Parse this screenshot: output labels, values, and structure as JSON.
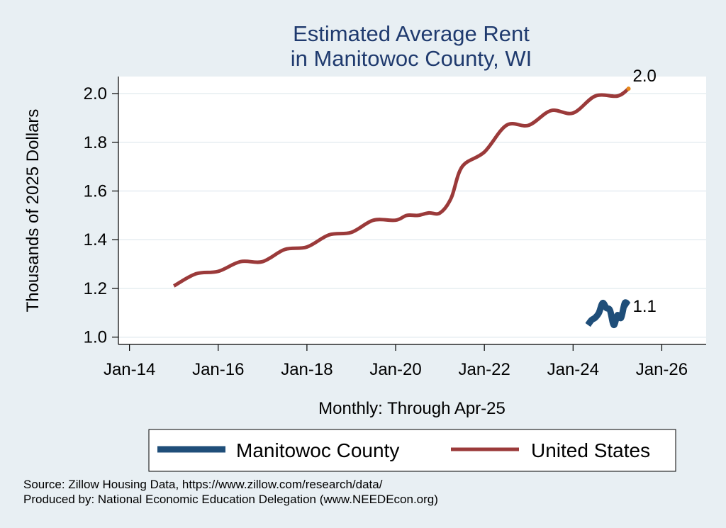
{
  "chart_data": {
    "type": "line",
    "title": [
      "Estimated Average Rent",
      "in Manitowoc County, WI"
    ],
    "ylabel": "Thousands of 2025 Dollars",
    "xlabel": "Monthly: Through Apr-25",
    "ylim": [
      0.97,
      2.07
    ],
    "yticks": [
      1.0,
      1.2,
      1.4,
      1.6,
      1.8,
      2.0
    ],
    "ytick_labels": [
      "1.0",
      "1.2",
      "1.4",
      "1.6",
      "1.8",
      "2.0"
    ],
    "xlim": [
      "2013-10",
      "2027-01"
    ],
    "xticks": [
      "2014-01",
      "2016-01",
      "2018-01",
      "2020-01",
      "2022-01",
      "2024-01",
      "2026-01"
    ],
    "xtick_labels": [
      "Jan-14",
      "Jan-16",
      "Jan-18",
      "Jan-20",
      "Jan-22",
      "Jan-24",
      "Jan-26"
    ],
    "grid": true,
    "legend": "bottom",
    "series": [
      {
        "name": "Manitowoc County",
        "color": "#1f4e79",
        "end_label": "1.1",
        "points": [
          [
            "2024-05",
            1.05
          ],
          [
            "2024-06",
            1.07
          ],
          [
            "2024-07",
            1.08
          ],
          [
            "2024-08",
            1.1
          ],
          [
            "2024-09",
            1.14
          ],
          [
            "2024-10",
            1.12
          ],
          [
            "2024-11",
            1.11
          ],
          [
            "2024-12",
            1.05
          ],
          [
            "2025-01",
            1.09
          ],
          [
            "2025-02",
            1.08
          ],
          [
            "2025-03",
            1.14
          ],
          [
            "2025-04",
            1.13
          ]
        ]
      },
      {
        "name": "United States",
        "color": "#9b3a3a",
        "end_label": "2.0",
        "end_marker_color": "#e8891c",
        "points": [
          [
            "2015-01",
            1.21
          ],
          [
            "2015-07",
            1.26
          ],
          [
            "2016-01",
            1.27
          ],
          [
            "2016-07",
            1.31
          ],
          [
            "2017-01",
            1.31
          ],
          [
            "2017-07",
            1.36
          ],
          [
            "2018-01",
            1.37
          ],
          [
            "2018-07",
            1.42
          ],
          [
            "2019-01",
            1.43
          ],
          [
            "2019-07",
            1.48
          ],
          [
            "2020-01",
            1.48
          ],
          [
            "2020-04",
            1.5
          ],
          [
            "2020-07",
            1.5
          ],
          [
            "2020-10",
            1.51
          ],
          [
            "2021-01",
            1.51
          ],
          [
            "2021-04",
            1.57
          ],
          [
            "2021-07",
            1.7
          ],
          [
            "2022-01",
            1.76
          ],
          [
            "2022-07",
            1.87
          ],
          [
            "2023-01",
            1.87
          ],
          [
            "2023-07",
            1.93
          ],
          [
            "2024-01",
            1.92
          ],
          [
            "2024-07",
            1.99
          ],
          [
            "2025-01",
            1.99
          ],
          [
            "2025-04",
            2.02
          ]
        ]
      }
    ],
    "source_lines": [
      "Source: Zillow Housing Data, https://www.zillow.com/research/data/",
      "Produced by: National Economic Education Delegation (www.NEEDEcon.org)"
    ]
  }
}
